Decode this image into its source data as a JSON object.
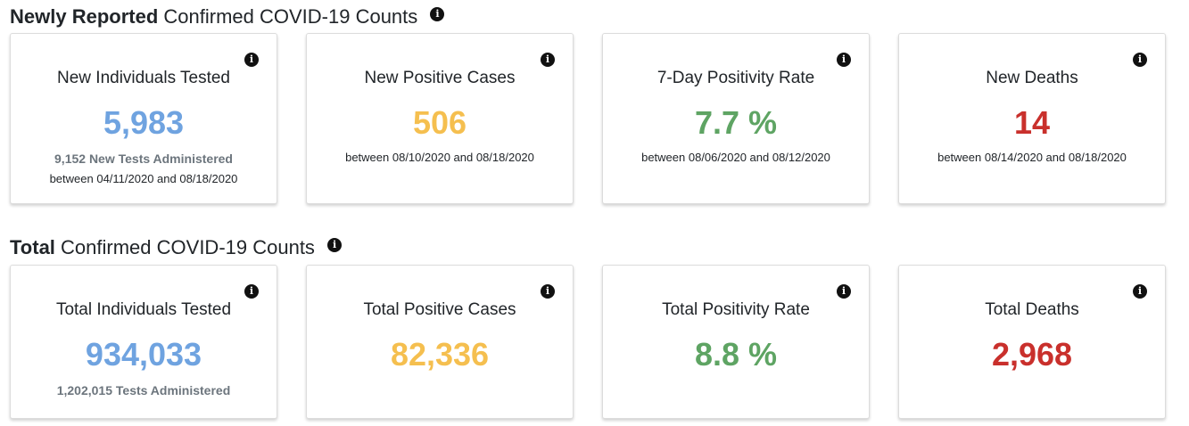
{
  "newly": {
    "title_bold": "Newly Reported",
    "title_rest": "Confirmed COVID-19 Counts",
    "cards": [
      {
        "title": "New Individuals Tested",
        "value": "5,983",
        "sub": "9,152 New Tests Administered",
        "date": "between 04/11/2020 and 08/18/2020",
        "color": "#6fa3e0"
      },
      {
        "title": "New Positive Cases",
        "value": "506",
        "date": "between 08/10/2020 and 08/18/2020",
        "color": "#f5bf4f"
      },
      {
        "title": "7-Day Positivity Rate",
        "value": "7.7 %",
        "date": "between 08/06/2020 and 08/12/2020",
        "color": "#5ea463"
      },
      {
        "title": "New Deaths",
        "value": "14",
        "date": "between 08/14/2020 and 08/18/2020",
        "color": "#c9302c"
      }
    ]
  },
  "total": {
    "title_bold": "Total",
    "title_rest": "Confirmed COVID-19 Counts",
    "cards": [
      {
        "title": "Total Individuals Tested",
        "value": "934,033",
        "sub": "1,202,015 Tests Administered",
        "color": "#6fa3e0"
      },
      {
        "title": "Total Positive Cases",
        "value": "82,336",
        "color": "#f5bf4f"
      },
      {
        "title": "Total Positivity Rate",
        "value": "8.8 %",
        "color": "#5ea463"
      },
      {
        "title": "Total Deaths",
        "value": "2,968",
        "color": "#c9302c"
      }
    ]
  },
  "icons": {
    "info": "info-circle-icon",
    "info_glyph": "i"
  }
}
